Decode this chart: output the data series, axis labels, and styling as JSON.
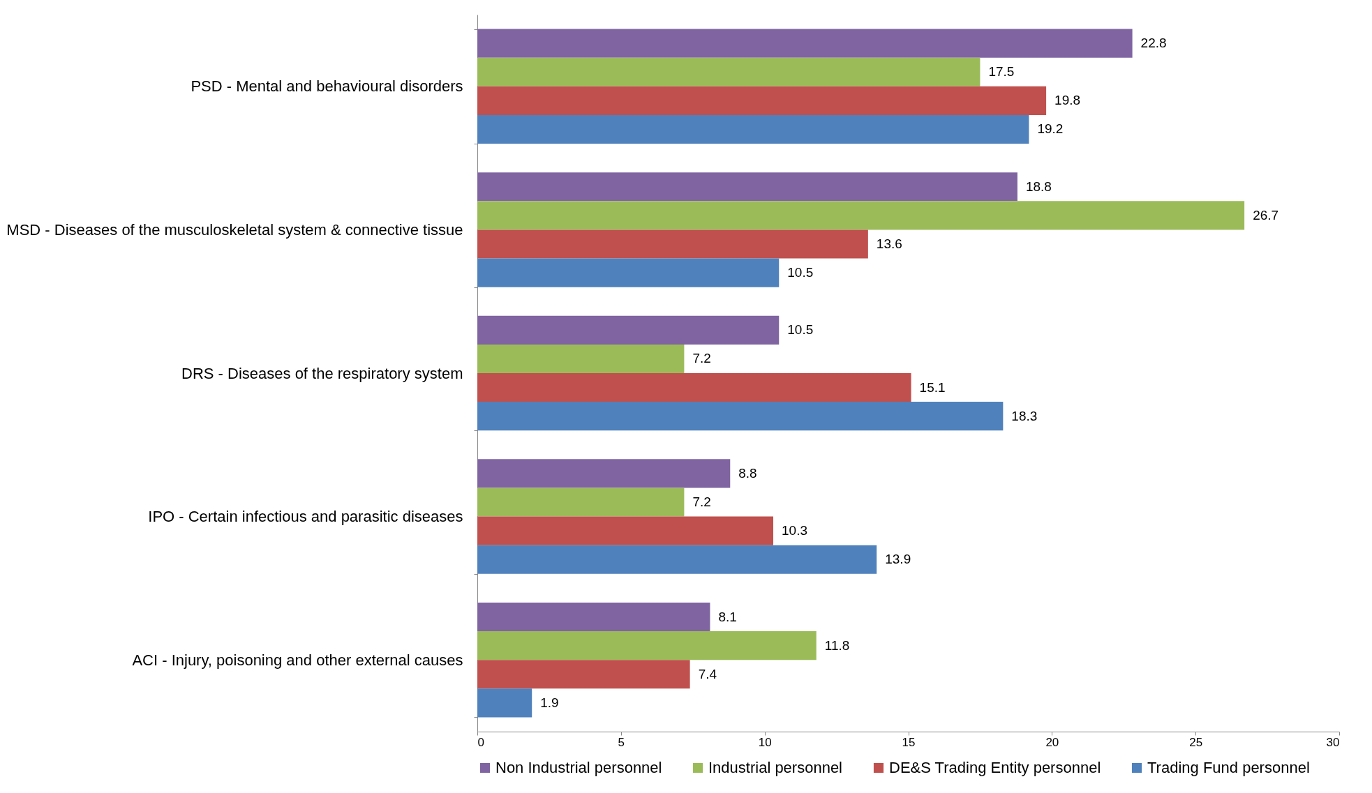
{
  "chart_data": {
    "type": "bar",
    "orientation": "horizontal",
    "categories": [
      "PSD - Mental and behavioural disorders",
      "MSD - Diseases of the musculoskeletal system & connective tissue",
      "DRS - Diseases of the respiratory system",
      "IPO - Certain infectious and parasitic diseases",
      "ACI - Injury, poisoning and other external causes"
    ],
    "series": [
      {
        "name": "Non Industrial personnel",
        "color": "#8064a2",
        "values": [
          22.8,
          18.8,
          10.5,
          8.8,
          8.1
        ]
      },
      {
        "name": "Industrial personnel",
        "color": "#9bbb59",
        "values": [
          17.5,
          26.7,
          7.2,
          7.2,
          11.8
        ]
      },
      {
        "name": "DE&S Trading Entity personnel",
        "color": "#c0504d",
        "values": [
          19.8,
          13.6,
          15.1,
          10.3,
          7.4
        ]
      },
      {
        "name": "Trading Fund personnel",
        "color": "#4f81bd",
        "values": [
          19.2,
          10.5,
          18.3,
          13.9,
          1.9
        ]
      }
    ],
    "xlim": [
      0,
      30
    ],
    "xticks": [
      0,
      5,
      10,
      15,
      20,
      25,
      30
    ],
    "data_labels": true,
    "grid": false,
    "legend": "bottom"
  }
}
